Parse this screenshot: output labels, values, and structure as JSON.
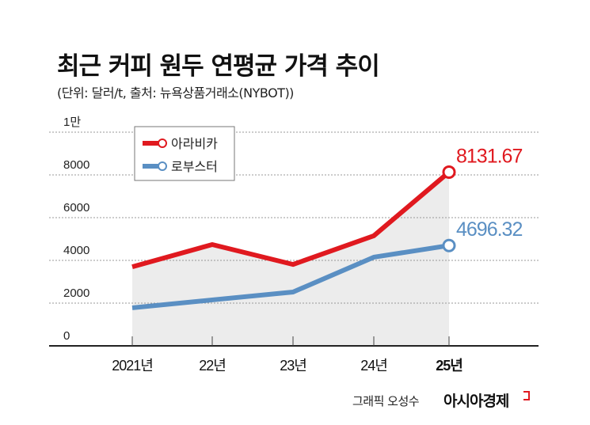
{
  "title": "최근 커피 원두 연평균 가격 추이",
  "subtitle": "(단위: 달러/t, 출처: 뉴욕상품거래소(NYBOT))",
  "chart_data": {
    "type": "line",
    "title": "최근 커피 원두 연평균 가격 추이",
    "ylabel": "",
    "xlabel": "",
    "categories": [
      "2021년",
      "22년",
      "23년",
      "24년",
      "25년"
    ],
    "y_ticks": [
      {
        "value": 0,
        "label": "0"
      },
      {
        "value": 2000,
        "label": "2000"
      },
      {
        "value": 4000,
        "label": "4000"
      },
      {
        "value": 6000,
        "label": "6000"
      },
      {
        "value": 8000,
        "label": "8000"
      },
      {
        "value": 10000,
        "label": "1만"
      }
    ],
    "ylim": [
      0,
      10000
    ],
    "grid": true,
    "legend": "top-left",
    "series": [
      {
        "name": "아라비카",
        "color": "#e0191f",
        "values": [
          3700,
          4740,
          3810,
          5150,
          8131.67
        ],
        "end_label": "8131.67"
      },
      {
        "name": "로부스터",
        "color": "#5a8fc3",
        "values": [
          1780,
          2150,
          2520,
          4150,
          4696.32
        ],
        "end_label": "4696.32"
      }
    ],
    "area_fill": "#ececec"
  },
  "footer": {
    "credit": "그래픽 오성수",
    "brand": "아시아경제"
  }
}
